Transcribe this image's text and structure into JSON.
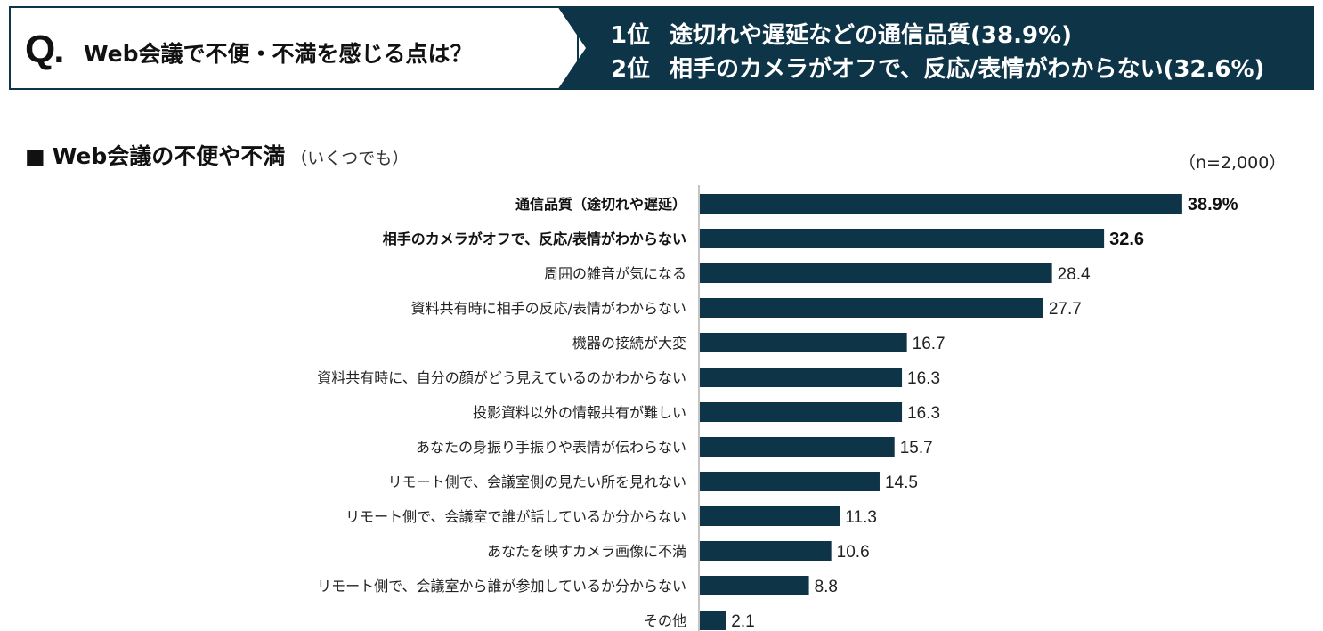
{
  "header": {
    "q_mark": "Q.",
    "question": "Web会議で不便・不満を感じる点は？",
    "rank1_pos": "1位",
    "rank1_text": "途切れや遅延などの通信品質(38.9%)",
    "rank2_pos": "2位",
    "rank2_text": "相手のカメラがオフで、反応/表情がわからない(32.6%)"
  },
  "section": {
    "square": "■",
    "title": "Web会議の不便や不満",
    "note": "（いくつでも）",
    "sample_size": "（n=2,000）"
  },
  "colors": {
    "bar": "#0e3447",
    "banner": "#0e3447"
  },
  "chart_data": {
    "type": "bar",
    "orientation": "horizontal",
    "unit": "%",
    "categories": [
      "通信品質（途切れや遅延）",
      "相手のカメラがオフで、反応/表情がわからない",
      "周囲の雑音が気になる",
      "資料共有時に相手の反応/表情がわからない",
      "機器の接続が大変",
      "資料共有時に、自分の顔がどう見えているのかわからない",
      "投影資料以外の情報共有が難しい",
      "あなたの身振り手振りや表情が伝わらない",
      "リモート側で、会議室側の見たい所を見れない",
      "リモート側で、会議室で誰が話しているか分からない",
      "あなたを映すカメラ画像に不満",
      "リモート側で、会議室から誰が参加しているか分からない",
      "その他"
    ],
    "values": [
      38.9,
      32.6,
      28.4,
      27.7,
      16.7,
      16.3,
      16.3,
      15.7,
      14.5,
      11.3,
      10.6,
      8.8,
      2.1
    ],
    "value_labels": [
      "38.9%",
      "32.6",
      "28.4",
      "27.7",
      "16.7",
      "16.3",
      "16.3",
      "15.7",
      "14.5",
      "11.3",
      "10.6",
      "8.8",
      "2.1"
    ],
    "highlighted": [
      true,
      true,
      false,
      false,
      false,
      false,
      false,
      false,
      false,
      false,
      false,
      false,
      false
    ],
    "xlim": [
      0,
      40
    ]
  }
}
